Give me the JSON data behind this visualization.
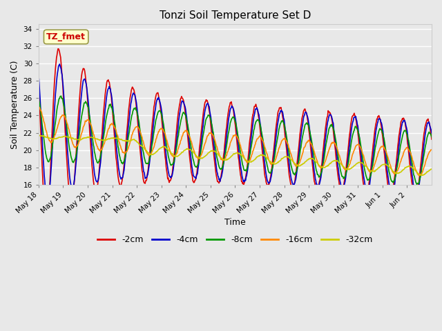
{
  "title": "Tonzi Soil Temperature Set D",
  "xlabel": "Time",
  "ylabel": "Soil Temperature (C)",
  "ylim": [
    16,
    34.5
  ],
  "yticks": [
    16,
    18,
    20,
    22,
    24,
    26,
    28,
    30,
    32,
    34
  ],
  "annotation_text": "TZ_fmet",
  "annotation_color": "#cc0000",
  "annotation_bg": "#ffffcc",
  "annotation_edge": "#999944",
  "bg_color": "#e8e8e8",
  "plot_bg": "#e8e8e8",
  "legend_labels": [
    "-2cm",
    "-4cm",
    "-8cm",
    "-16cm",
    "-32cm"
  ],
  "legend_colors": [
    "#dd0000",
    "#0000cc",
    "#009900",
    "#ff8800",
    "#cccc00"
  ],
  "line_width": 1.2,
  "figsize": [
    6.4,
    4.8
  ],
  "dpi": 100
}
